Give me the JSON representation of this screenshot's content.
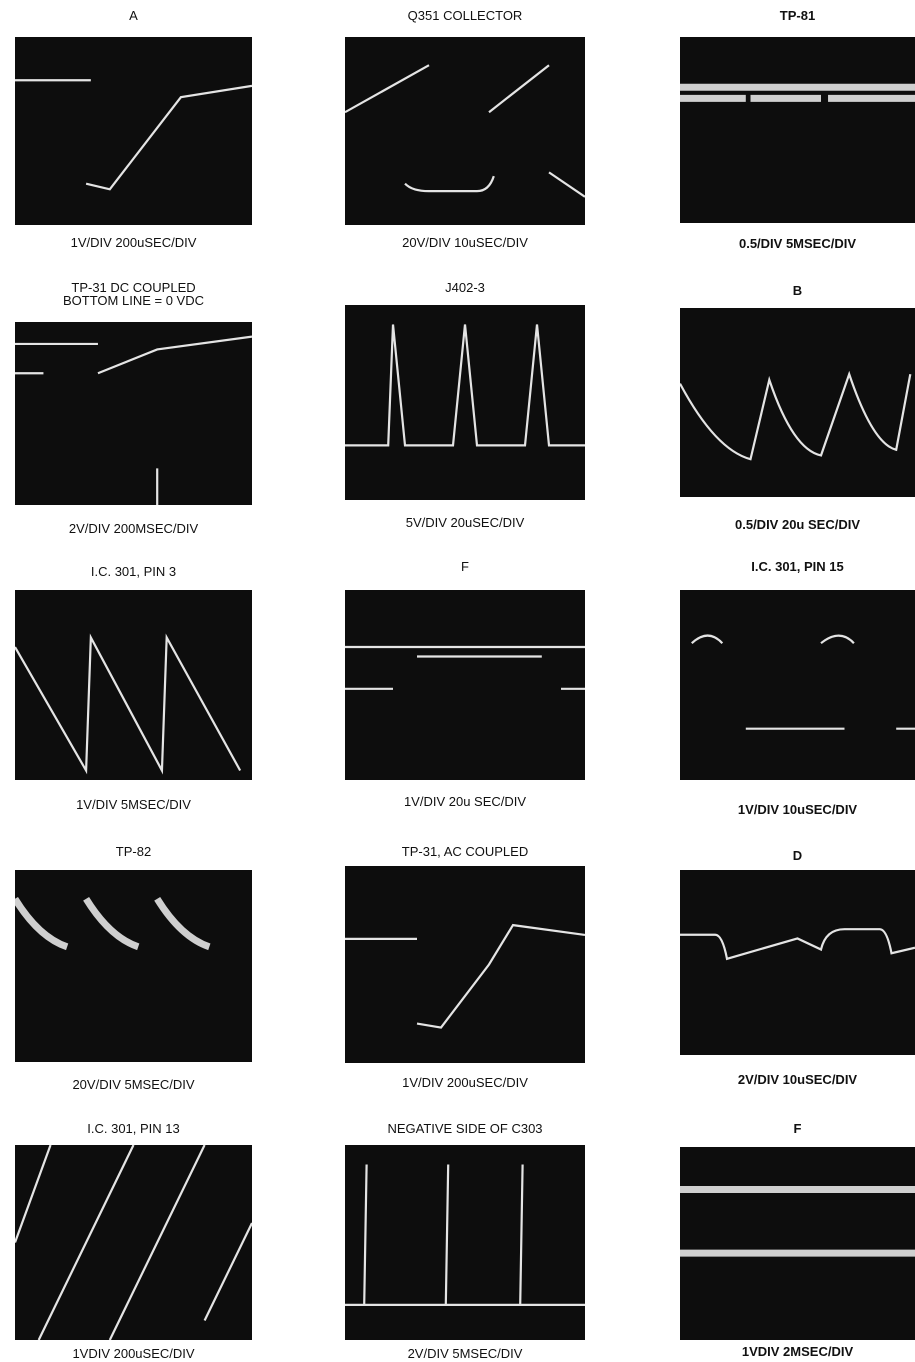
{
  "panels": [
    {
      "title": [
        "A"
      ],
      "caption": "1V/DIV 200uSEC/DIV"
    },
    {
      "title": [
        "Q351 COLLECTOR"
      ],
      "caption": "20V/DIV 10uSEC/DIV"
    },
    {
      "title": [
        "TP-81"
      ],
      "caption": "0.5/DIV 5MSEC/DIV"
    },
    {
      "title": [
        "TP-31 DC COUPLED",
        "BOTTOM LINE = 0 VDC"
      ],
      "caption": "2V/DIV 200MSEC/DIV"
    },
    {
      "title": [
        "J402-3"
      ],
      "caption": "5V/DIV 20uSEC/DIV"
    },
    {
      "title": [
        "B"
      ],
      "caption": "0.5/DIV 20u SEC/DIV"
    },
    {
      "title": [
        "I.C. 301, PIN 3"
      ],
      "caption": "1V/DIV 5MSEC/DIV"
    },
    {
      "title": [
        "F"
      ],
      "caption": "1V/DIV 20u SEC/DIV"
    },
    {
      "title": [
        "I.C. 301, PIN 15"
      ],
      "caption": "1V/DIV 10uSEC/DIV"
    },
    {
      "title": [
        "TP-82"
      ],
      "caption": "20V/DIV 5MSEC/DIV"
    },
    {
      "title": [
        "TP-31, AC COUPLED"
      ],
      "caption": "1V/DIV 200uSEC/DIV"
    },
    {
      "title": [
        "D"
      ],
      "caption": "2V/DIV 10uSEC/DIV"
    },
    {
      "title": [
        "I.C. 301, PIN 13"
      ],
      "caption": "1VDIV 200uSEC/DIV"
    },
    {
      "title": [
        "NEGATIVE SIDE OF C303"
      ],
      "caption": "2V/DIV 5MSEC/DIV"
    },
    {
      "title": [
        "F"
      ],
      "caption": "1VDIV 2MSEC/DIV"
    }
  ]
}
